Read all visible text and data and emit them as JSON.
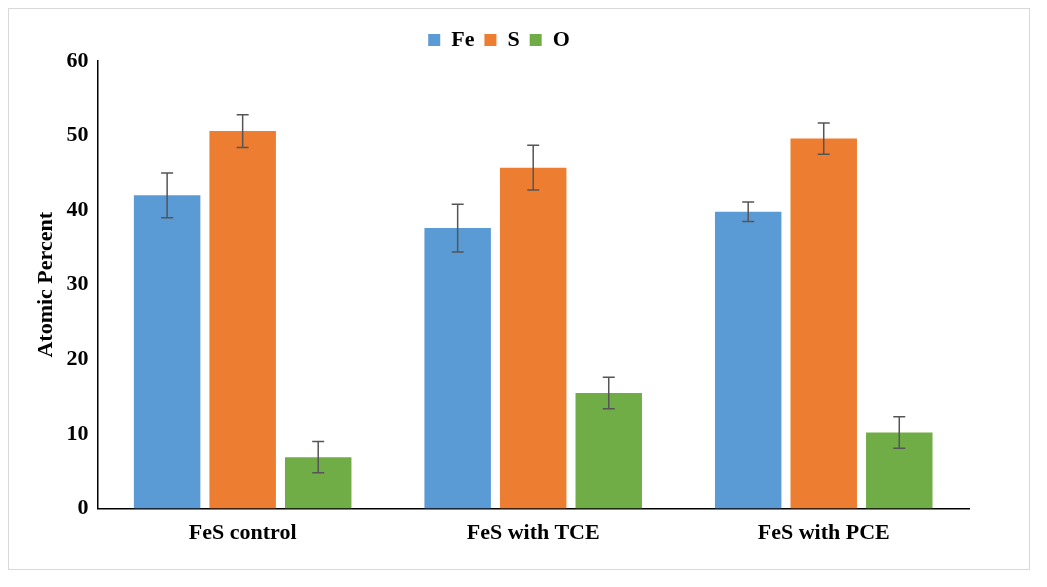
{
  "chart_data": {
    "type": "bar",
    "ylabel": "Atomic Percent",
    "categories": [
      "FeS control",
      "FeS with TCE",
      "FeS with PCE"
    ],
    "series": [
      {
        "name": "Fe",
        "color": "#5b9bd5",
        "values": [
          42.0,
          37.6,
          39.8
        ],
        "errors": [
          3.0,
          3.2,
          1.3
        ]
      },
      {
        "name": "S",
        "color": "#ed7d31",
        "values": [
          50.6,
          45.7,
          49.6
        ],
        "errors": [
          2.2,
          3.0,
          2.1
        ]
      },
      {
        "name": "O",
        "color": "#70ad47",
        "values": [
          6.9,
          15.5,
          10.2
        ],
        "errors": [
          2.1,
          2.1,
          2.1
        ]
      }
    ],
    "ylim": [
      0,
      60
    ],
    "yticks": [
      0,
      10,
      20,
      30,
      40,
      50,
      60
    ],
    "grid": false,
    "legend": "top"
  }
}
